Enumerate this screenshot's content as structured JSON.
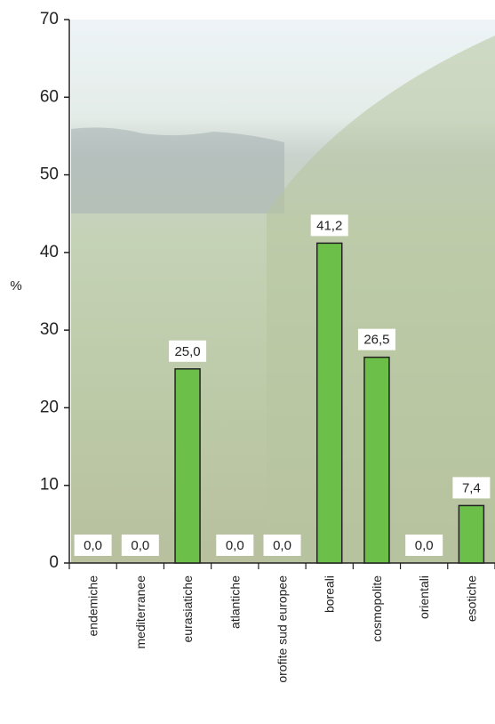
{
  "chart_data": {
    "type": "bar",
    "categories": [
      "endemiche",
      "mediterranee",
      "eurasiatiche",
      "atlantiche",
      "orofite sud europee",
      "boreali",
      "cosmopolite",
      "orientali",
      "esotiche"
    ],
    "values": [
      0,
      0,
      25,
      0,
      0,
      41.2,
      26.5,
      0,
      7.4
    ],
    "value_labels": [
      "0,0",
      "0,0",
      "25,0",
      "0,0",
      "0,0",
      "41,2",
      "26,5",
      "0,0",
      "7,4"
    ],
    "color": "#6cc04a",
    "y_label": "%",
    "ylim": [
      0,
      70
    ],
    "yticks": [
      0,
      10,
      20,
      30,
      40,
      50,
      60,
      70
    ]
  }
}
